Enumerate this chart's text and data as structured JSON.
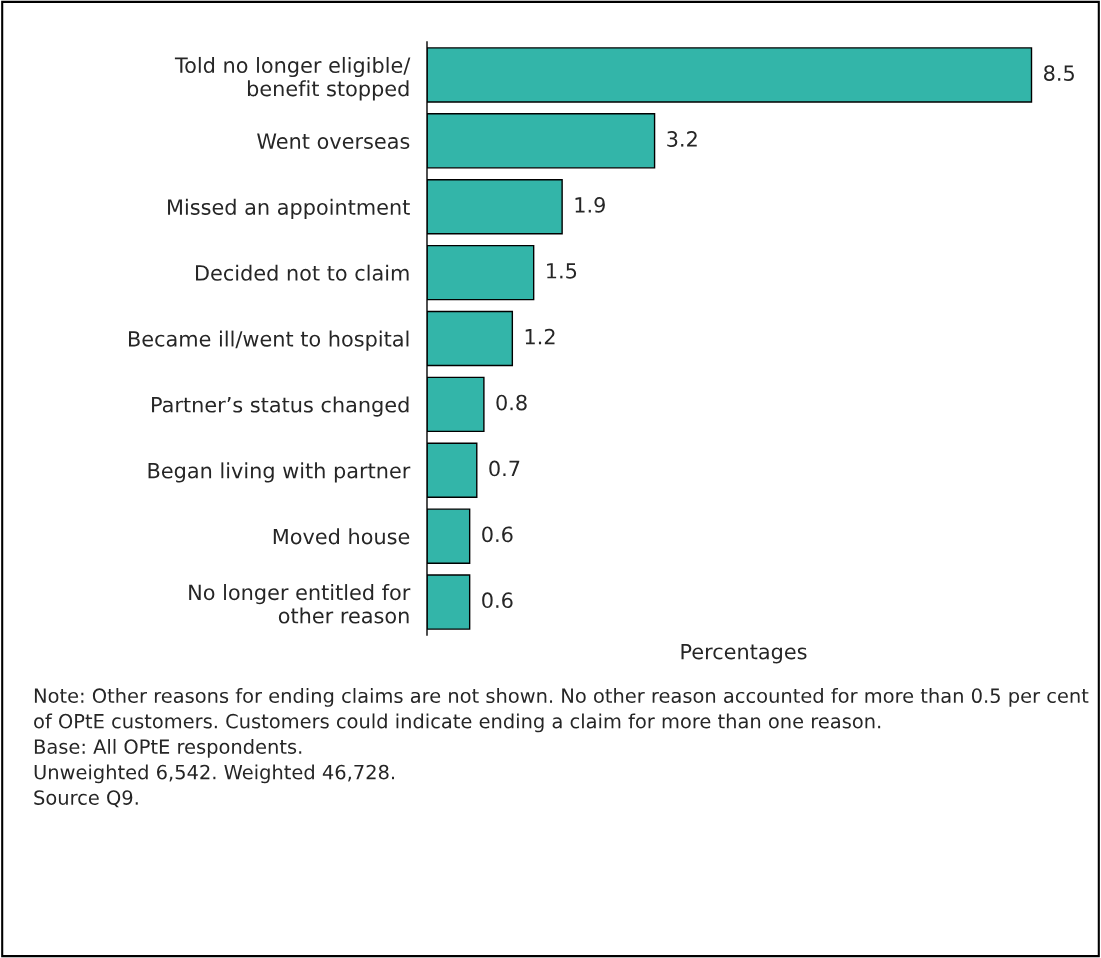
{
  "chart_data": {
    "type": "bar",
    "orientation": "horizontal",
    "categories": [
      "Told no longer eligible/\nbenefit stopped",
      "Went overseas",
      "Missed an appointment",
      "Decided not to claim",
      "Became ill/went to hospital",
      "Partner’s status changed",
      "Began living with partner",
      "Moved house",
      "No longer entitled for\nother reason"
    ],
    "values": [
      8.5,
      3.2,
      1.9,
      1.5,
      1.2,
      0.8,
      0.7,
      0.6,
      0.6
    ],
    "color": "#33b5a9",
    "data_labels": true,
    "xlabel": "Percentages",
    "grid": false,
    "annotations": [
      "Note: Other reasons for ending claims are not shown. No other reason accounted for more than 0.5 per cent of OPtE customers. Customers could indicate ending a claim for more than one reason.",
      "Base: All OPtE respondents.",
      "Unweighted 6,542. Weighted 46,728.",
      "Source Q9."
    ]
  }
}
